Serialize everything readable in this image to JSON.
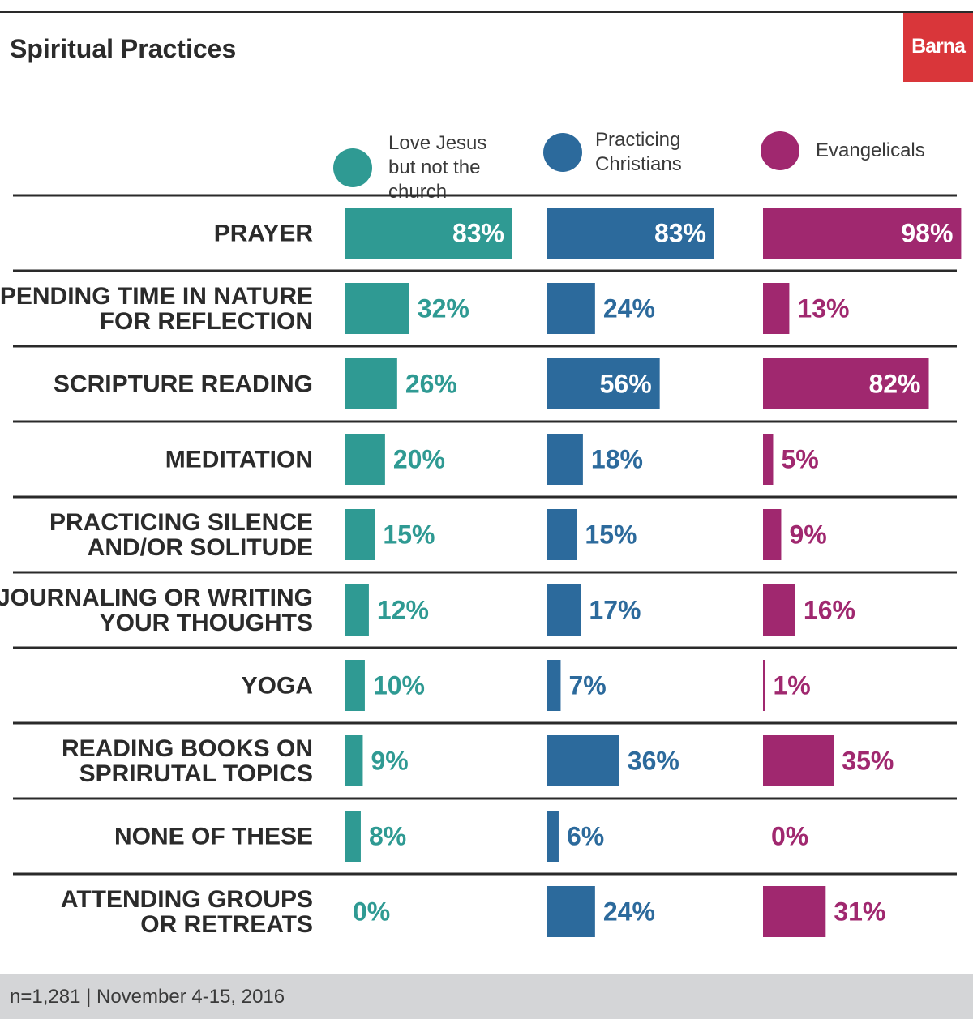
{
  "title": "Spiritual Practices",
  "brand": "Barna",
  "footer": "n=1,281  |  November 4-15, 2016",
  "colors": {
    "love_jesus": "#2f9a93",
    "practicing": "#2c6a9c",
    "evangelicals": "#a0286f",
    "text": "#2b2b2b",
    "brand": "#d9363a"
  },
  "chart_data": {
    "type": "bar",
    "orientation": "horizontal",
    "title": "Spiritual Practices",
    "unit": "%",
    "xlim": [
      0,
      100
    ],
    "grid": false,
    "legend_position": "top",
    "categories": [
      "PRAYER",
      "SPENDING TIME IN NATURE\nFOR REFLECTION",
      "SCRIPTURE READING",
      "MEDITATION",
      "PRACTICING SILENCE\nAND/OR SOLITUDE",
      "JOURNALING OR WRITING\nYOUR THOUGHTS",
      "YOGA",
      "READING BOOKS ON\nSPRIRUTAL TOPICS",
      "NONE OF THESE",
      "ATTENDING GROUPS\nOR RETREATS"
    ],
    "series": [
      {
        "name": "Love Jesus\nbut not the\nchurch",
        "color": "#2f9a93",
        "values": [
          83,
          32,
          26,
          20,
          15,
          12,
          10,
          9,
          8,
          0
        ]
      },
      {
        "name": "Practicing\nChristians",
        "color": "#2c6a9c",
        "values": [
          83,
          24,
          56,
          18,
          15,
          17,
          7,
          36,
          6,
          24
        ]
      },
      {
        "name": "Evangelicals",
        "color": "#a0286f",
        "values": [
          98,
          13,
          82,
          5,
          9,
          16,
          1,
          35,
          0,
          31
        ]
      }
    ]
  }
}
